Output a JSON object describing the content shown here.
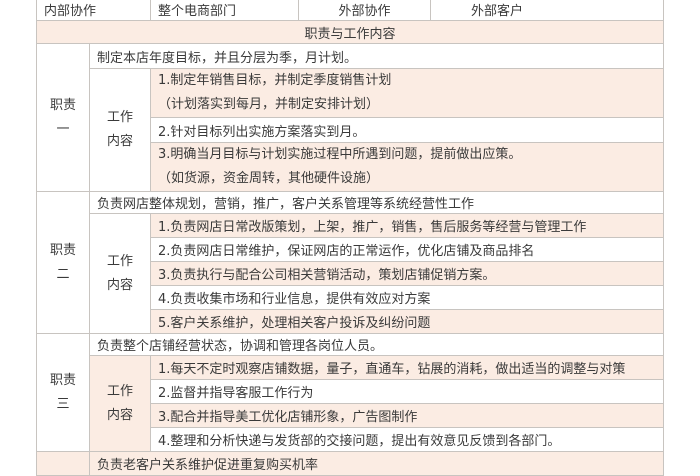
{
  "top_row": [
    "内部协作",
    "整个电商部门",
    "外部协作",
    "外部客户"
  ],
  "section_title": "职责与工作内容",
  "work_label": [
    "工作",
    "内容"
  ],
  "duties": [
    {
      "label": [
        "职责",
        "一"
      ],
      "summary": "制定本店年度目标，并且分层为季，月计划。",
      "items": [
        [
          "1.制定年销售目标，并制定季度销售计划",
          "（计划落实到每月，并制定安排计划）"
        ],
        [
          "2.针对目标列出实施方案落实到月。"
        ],
        [
          "3.明确当月目标与计划实施过程中所遇到问题，提前做出应策。",
          "（如货源，资金周转，其他硬件设施）"
        ]
      ]
    },
    {
      "label": [
        "职责",
        "二"
      ],
      "summary": "负责网店整体规划，营销，推广，客户关系管理等系统经营性工作",
      "items": [
        [
          "1.负责网店日常改版策划，上架，推广，销售，售后服务等经营与管理工作"
        ],
        [
          "2.负责网店日常维护，保证网店的正常运作，优化店铺及商品排名"
        ],
        [
          "3.负责执行与配合公司相关营销活动，策划店铺促销方案。"
        ],
        [
          "4.负责收集市场和行业信息，提供有效应对方案"
        ],
        [
          "5.客户关系维护，处理相关客户投诉及纠纷问题"
        ]
      ]
    },
    {
      "label": [
        "职责",
        "三"
      ],
      "summary": "负责整个店铺经营状态，协调和管理各岗位人员。",
      "items": [
        [
          "1.每天不定时观察店铺数据，量子，直通车，钻展的消耗，做出适当的调整与对策"
        ],
        [
          "2.监督并指导客服工作行为"
        ],
        [
          "3.配合并指导美工优化店铺形象，广告图制作"
        ],
        [
          "4.整理和分析快递与发货部的交接问题，提出有效意见反馈到各部门。"
        ]
      ]
    },
    {
      "summary": "负责老客户关系维护促进重复购买机率"
    }
  ]
}
